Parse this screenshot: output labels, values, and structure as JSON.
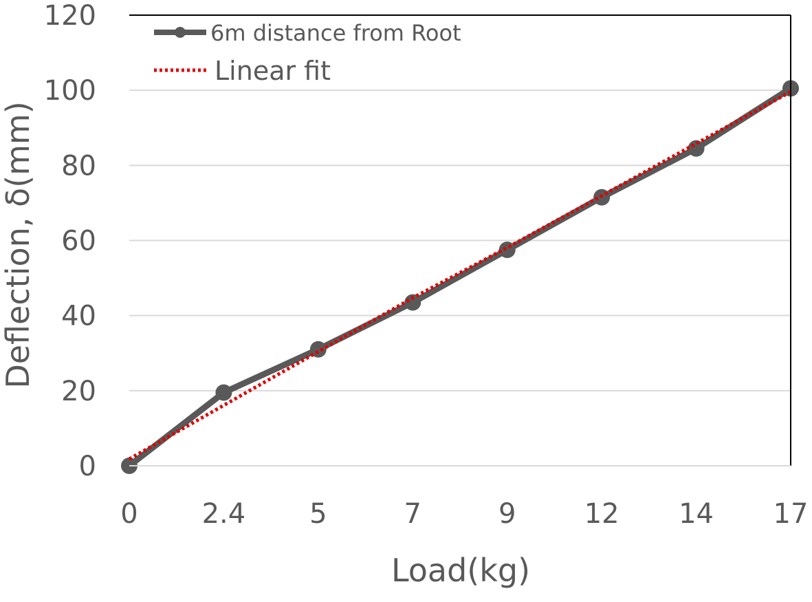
{
  "chart_data": {
    "type": "line",
    "xlabel": "Load(kg)",
    "ylabel": "Deflection, δ(mm)",
    "categories": [
      "0",
      "2.4",
      "5",
      "7",
      "9",
      "12",
      "14",
      "17"
    ],
    "ylim": [
      0,
      120
    ],
    "yticks": [
      0,
      20,
      40,
      60,
      80,
      100,
      120
    ],
    "grid": "horizontal",
    "legend_position": "top-left",
    "series": [
      {
        "name": "6m distance from Root",
        "values": [
          0,
          19.5,
          31,
          43.5,
          57.5,
          71.5,
          84.5,
          100.5
        ],
        "color": "#595959",
        "style": "solid-markers"
      },
      {
        "name": "Linear fit",
        "values": [
          1.8,
          16.1,
          30.4,
          44.7,
          58.1,
          71.9,
          85.8,
          99.6
        ],
        "color": "#e00000",
        "style": "dotted"
      }
    ]
  }
}
